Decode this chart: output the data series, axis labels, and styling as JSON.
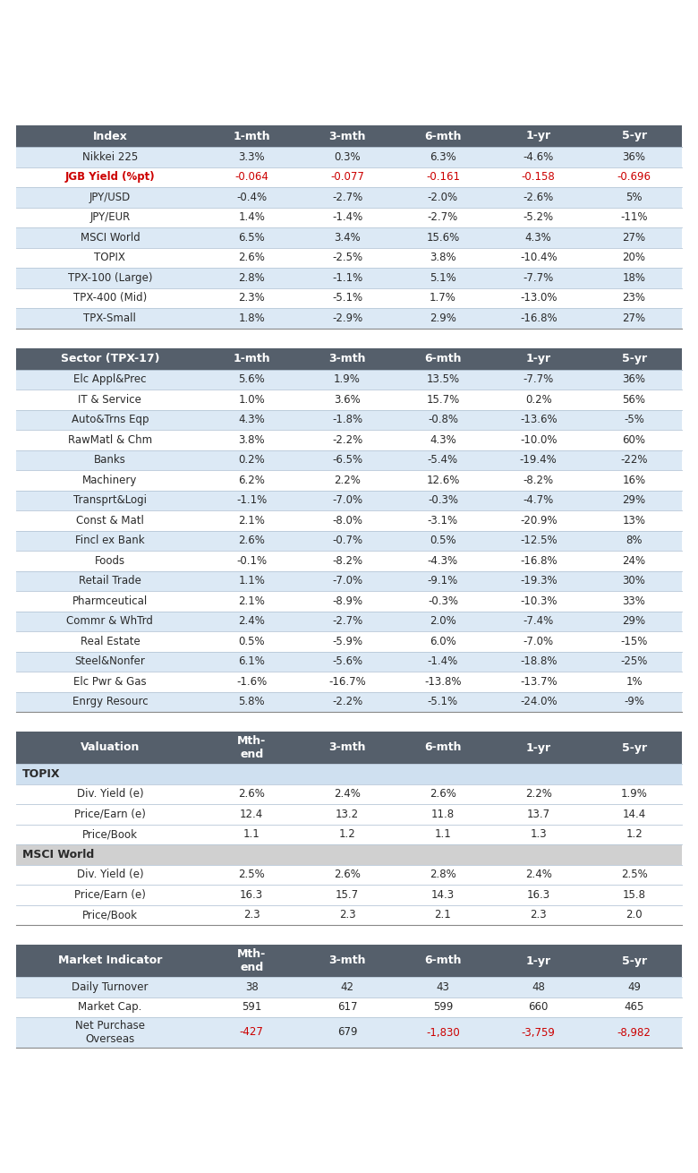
{
  "header_bg": "#555f6b",
  "header_text": "#ffffff",
  "row_bg_light": "#dce9f5",
  "row_bg_white": "#ffffff",
  "row_bg_group_topix": "#cfe0f0",
  "row_bg_group_msci": "#d0d0d0",
  "red_color": "#cc0000",
  "body_text": "#2a2a2a",
  "table1_title": "Index",
  "table1_cols": [
    "1-mth",
    "3-mth",
    "6-mth",
    "1-yr",
    "5-yr"
  ],
  "table1_rows": [
    [
      "Nikkei 225",
      "3.3%",
      "0.3%",
      "6.3%",
      "-4.6%",
      "36%"
    ],
    [
      "JGB Yield (%pt)",
      "-0.064",
      "-0.077",
      "-0.161",
      "-0.158",
      "-0.696"
    ],
    [
      "JPY/USD",
      "-0.4%",
      "-2.7%",
      "-2.0%",
      "-2.6%",
      "5%"
    ],
    [
      "JPY/EUR",
      "1.4%",
      "-1.4%",
      "-2.7%",
      "-5.2%",
      "-11%"
    ],
    [
      "MSCI World",
      "6.5%",
      "3.4%",
      "15.6%",
      "4.3%",
      "27%"
    ],
    [
      "TOPIX",
      "2.6%",
      "-2.5%",
      "3.8%",
      "-10.4%",
      "20%"
    ],
    [
      "TPX-100 (Large)",
      "2.8%",
      "-1.1%",
      "5.1%",
      "-7.7%",
      "18%"
    ],
    [
      "TPX-400 (Mid)",
      "2.3%",
      "-5.1%",
      "1.7%",
      "-13.0%",
      "23%"
    ],
    [
      "TPX-Small",
      "1.8%",
      "-2.9%",
      "2.9%",
      "-16.8%",
      "27%"
    ]
  ],
  "table1_red_row": 1,
  "table2_title": "Sector (TPX-17)",
  "table2_cols": [
    "1-mth",
    "3-mth",
    "6-mth",
    "1-yr",
    "5-yr"
  ],
  "table2_rows": [
    [
      "Elc Appl&Prec",
      "5.6%",
      "1.9%",
      "13.5%",
      "-7.7%",
      "36%"
    ],
    [
      "IT & Service",
      "1.0%",
      "3.6%",
      "15.7%",
      "0.2%",
      "56%"
    ],
    [
      "Auto&Trns Eqp",
      "4.3%",
      "-1.8%",
      "-0.8%",
      "-13.6%",
      "-5%"
    ],
    [
      "RawMatl & Chm",
      "3.8%",
      "-2.2%",
      "4.3%",
      "-10.0%",
      "60%"
    ],
    [
      "Banks",
      "0.2%",
      "-6.5%",
      "-5.4%",
      "-19.4%",
      "-22%"
    ],
    [
      "Machinery",
      "6.2%",
      "2.2%",
      "12.6%",
      "-8.2%",
      "16%"
    ],
    [
      "Transprt&Logi",
      "-1.1%",
      "-7.0%",
      "-0.3%",
      "-4.7%",
      "29%"
    ],
    [
      "Const & Matl",
      "2.1%",
      "-8.0%",
      "-3.1%",
      "-20.9%",
      "13%"
    ],
    [
      "Fincl ex Bank",
      "2.6%",
      "-0.7%",
      "0.5%",
      "-12.5%",
      "8%"
    ],
    [
      "Foods",
      "-0.1%",
      "-8.2%",
      "-4.3%",
      "-16.8%",
      "24%"
    ],
    [
      "Retail Trade",
      "1.1%",
      "-7.0%",
      "-9.1%",
      "-19.3%",
      "30%"
    ],
    [
      "Pharmceutical",
      "2.1%",
      "-8.9%",
      "-0.3%",
      "-10.3%",
      "33%"
    ],
    [
      "Commr & WhTrd",
      "2.4%",
      "-2.7%",
      "2.0%",
      "-7.4%",
      "29%"
    ],
    [
      "Real Estate",
      "0.5%",
      "-5.9%",
      "6.0%",
      "-7.0%",
      "-15%"
    ],
    [
      "Steel&Nonfer",
      "6.1%",
      "-5.6%",
      "-1.4%",
      "-18.8%",
      "-25%"
    ],
    [
      "Elc Pwr & Gas",
      "-1.6%",
      "-16.7%",
      "-13.8%",
      "-13.7%",
      "1%"
    ],
    [
      "Enrgy Resourc",
      "5.8%",
      "-2.2%",
      "-5.1%",
      "-24.0%",
      "-9%"
    ]
  ],
  "table3_title": "Valuation",
  "table3_col2": "Mth-\nend",
  "table3_cols": [
    "3-mth",
    "6-mth",
    "1-yr",
    "5-yr"
  ],
  "table3_rows": [
    [
      "TOPIX",
      "",
      "",
      "",
      "",
      ""
    ],
    [
      "Div. Yield (e)",
      "2.6%",
      "2.4%",
      "2.6%",
      "2.2%",
      "1.9%"
    ],
    [
      "Price/Earn (e)",
      "12.4",
      "13.2",
      "11.8",
      "13.7",
      "14.4"
    ],
    [
      "Price/Book",
      "1.1",
      "1.2",
      "1.1",
      "1.3",
      "1.2"
    ],
    [
      "MSCI World",
      "",
      "",
      "",
      "",
      ""
    ],
    [
      "Div. Yield (e)",
      "2.5%",
      "2.6%",
      "2.8%",
      "2.4%",
      "2.5%"
    ],
    [
      "Price/Earn (e)",
      "16.3",
      "15.7",
      "14.3",
      "16.3",
      "15.8"
    ],
    [
      "Price/Book",
      "2.3",
      "2.3",
      "2.1",
      "2.3",
      "2.0"
    ]
  ],
  "table4_title": "Market Indicator",
  "table4_col2": "Mth-\nend",
  "table4_cols": [
    "3-mth",
    "6-mth",
    "1-yr",
    "5-yr"
  ],
  "table4_rows": [
    [
      "Daily Turnover",
      "38",
      "42",
      "43",
      "48",
      "49"
    ],
    [
      "Market Cap.",
      "591",
      "617",
      "599",
      "660",
      "465"
    ],
    [
      "Net Purchase\nOverseas",
      "-427",
      "679",
      "-1,830",
      "-3,759",
      "-8,982"
    ]
  ],
  "table4_red_cells": [
    [
      2,
      0
    ],
    [
      2,
      2
    ],
    [
      2,
      3
    ],
    [
      2,
      4
    ]
  ]
}
